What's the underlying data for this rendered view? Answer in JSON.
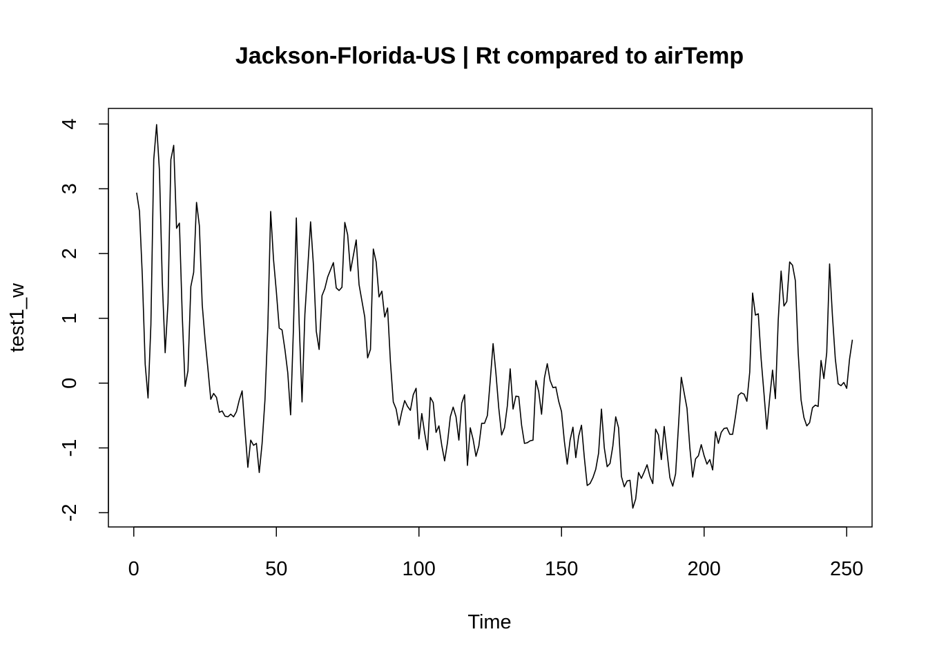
{
  "chart_data": {
    "type": "line",
    "title": "Jackson-Florida-US | Rt compared to airTemp",
    "xlabel": "Time",
    "ylabel": "test1_w",
    "xlim": [
      -8.9,
      258.9
    ],
    "ylim": [
      -2.22,
      4.24
    ],
    "xticks": [
      0,
      50,
      100,
      150,
      200,
      250
    ],
    "yticks": [
      -2,
      -1,
      0,
      1,
      2,
      3,
      4
    ],
    "xtick_labels": [
      "0",
      "50",
      "100",
      "150",
      "200",
      "250"
    ],
    "ytick_labels": [
      "-2",
      "-1",
      "0",
      "1",
      "2",
      "3",
      "4"
    ],
    "grid": false,
    "line_color": "#000000",
    "series": [
      {
        "x_start": 1,
        "values": [
          2.94,
          2.65,
          1.65,
          0.29,
          -0.23,
          0.9,
          3.45,
          3.99,
          3.28,
          1.56,
          0.47,
          1.24,
          3.45,
          3.67,
          2.39,
          2.47,
          1.04,
          -0.05,
          0.19,
          1.49,
          1.71,
          2.79,
          2.43,
          1.21,
          0.67,
          0.22,
          -0.25,
          -0.16,
          -0.22,
          -0.45,
          -0.43,
          -0.51,
          -0.52,
          -0.48,
          -0.52,
          -0.44,
          -0.26,
          -0.12,
          -0.72,
          -1.3,
          -0.88,
          -0.96,
          -0.93,
          -1.38,
          -0.93,
          -0.26,
          0.86,
          2.65,
          1.91,
          1.41,
          0.85,
          0.82,
          0.52,
          0.16,
          -0.49,
          0.86,
          2.55,
          0.93,
          -0.29,
          1.06,
          1.77,
          2.49,
          1.82,
          0.8,
          0.52,
          1.35,
          1.46,
          1.64,
          1.75,
          1.86,
          1.47,
          1.43,
          1.48,
          2.48,
          2.29,
          1.73,
          1.97,
          2.21,
          1.52,
          1.27,
          1.02,
          0.39,
          0.52,
          2.07,
          1.87,
          1.33,
          1.42,
          1.02,
          1.16,
          0.33,
          -0.29,
          -0.4,
          -0.65,
          -0.44,
          -0.27,
          -0.36,
          -0.42,
          -0.18,
          -0.08,
          -0.86,
          -0.47,
          -0.77,
          -1.03,
          -0.22,
          -0.3,
          -0.76,
          -0.66,
          -0.96,
          -1.2,
          -0.92,
          -0.52,
          -0.37,
          -0.52,
          -0.88,
          -0.31,
          -0.18,
          -1.27,
          -0.69,
          -0.87,
          -1.13,
          -0.97,
          -0.62,
          -0.62,
          -0.5,
          0.04,
          0.61,
          0.15,
          -0.39,
          -0.8,
          -0.69,
          -0.35,
          0.22,
          -0.4,
          -0.2,
          -0.21,
          -0.65,
          -0.93,
          -0.92,
          -0.89,
          -0.88,
          0.04,
          -0.13,
          -0.48,
          0.08,
          0.3,
          0.04,
          -0.07,
          -0.06,
          -0.28,
          -0.44,
          -0.9,
          -1.25,
          -0.88,
          -0.68,
          -1.15,
          -0.82,
          -0.65,
          -1.15,
          -1.58,
          -1.55,
          -1.46,
          -1.33,
          -1.08,
          -0.4,
          -1.0,
          -1.29,
          -1.24,
          -0.97,
          -0.52,
          -0.69,
          -1.44,
          -1.6,
          -1.51,
          -1.5,
          -1.93,
          -1.79,
          -1.38,
          -1.47,
          -1.37,
          -1.26,
          -1.44,
          -1.55,
          -0.71,
          -0.8,
          -1.18,
          -0.67,
          -1.07,
          -1.46,
          -1.59,
          -1.4,
          -0.67,
          0.09,
          -0.15,
          -0.39,
          -1.0,
          -1.45,
          -1.17,
          -1.12,
          -0.95,
          -1.12,
          -1.25,
          -1.18,
          -1.34,
          -0.75,
          -0.93,
          -0.76,
          -0.7,
          -0.69,
          -0.79,
          -0.79,
          -0.51,
          -0.19,
          -0.15,
          -0.17,
          -0.28,
          0.17,
          1.39,
          1.05,
          1.07,
          0.37,
          -0.16,
          -0.71,
          -0.23,
          0.2,
          -0.24,
          0.98,
          1.73,
          1.19,
          1.26,
          1.87,
          1.82,
          1.58,
          0.46,
          -0.26,
          -0.53,
          -0.66,
          -0.61,
          -0.38,
          -0.34,
          -0.36,
          0.35,
          0.07,
          0.47,
          1.84,
          1.04,
          0.38,
          -0.01,
          -0.04,
          0.01,
          -0.08,
          0.37,
          0.67
        ]
      }
    ]
  }
}
